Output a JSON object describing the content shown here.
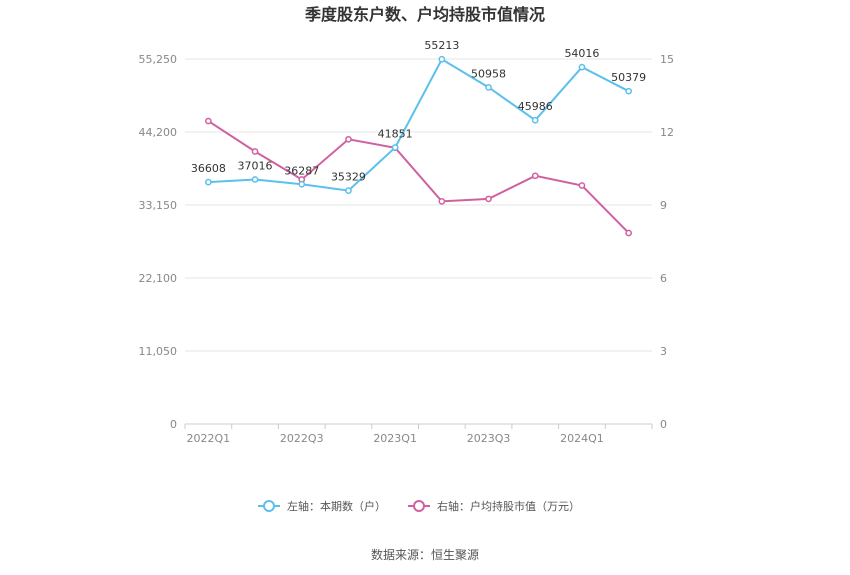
{
  "chart_data": {
    "type": "line",
    "title": "季度股东户数、户均持股市值情况",
    "categories": [
      "2022Q1",
      "2022Q2",
      "2022Q3",
      "2022Q4",
      "2023Q1",
      "2023Q2",
      "2023Q3",
      "2023Q4",
      "2024Q1",
      "2024Q2"
    ],
    "x_tick_labels": [
      "2022Q1",
      "2022Q3",
      "2023Q1",
      "2023Q3",
      "2024Q1"
    ],
    "left_axis": {
      "min": 0,
      "max": 55250,
      "ticks": [
        0,
        11050,
        22100,
        33150,
        44200,
        55250
      ],
      "tick_labels": [
        "0",
        "11,050",
        "22,100",
        "33,150",
        "44,200",
        "55,250"
      ]
    },
    "right_axis": {
      "min": 0,
      "max": 15,
      "ticks": [
        0,
        3,
        6,
        9,
        12,
        15
      ],
      "tick_labels": [
        "0",
        "3",
        "6",
        "9",
        "12",
        "15"
      ]
    },
    "series": [
      {
        "name": "左轴：本期数（户）",
        "axis": "left",
        "color": "#5bc0eb",
        "values": [
          36608,
          37016,
          36287,
          35329,
          41851,
          55213,
          50958,
          45986,
          54016,
          50379
        ],
        "labels": [
          "36608",
          "37016",
          "36287",
          "35329",
          "41851",
          "55213",
          "50958",
          "45986",
          "54016",
          "50379"
        ]
      },
      {
        "name": "右轴：户均持股市值（万元）",
        "axis": "right",
        "color": "#d0609e",
        "values": [
          12.45,
          11.2,
          10.05,
          11.7,
          11.35,
          9.15,
          9.25,
          10.2,
          9.8,
          7.85
        ]
      }
    ],
    "legend_position": "bottom-center",
    "grid": true
  },
  "source": "数据来源：恒生聚源"
}
